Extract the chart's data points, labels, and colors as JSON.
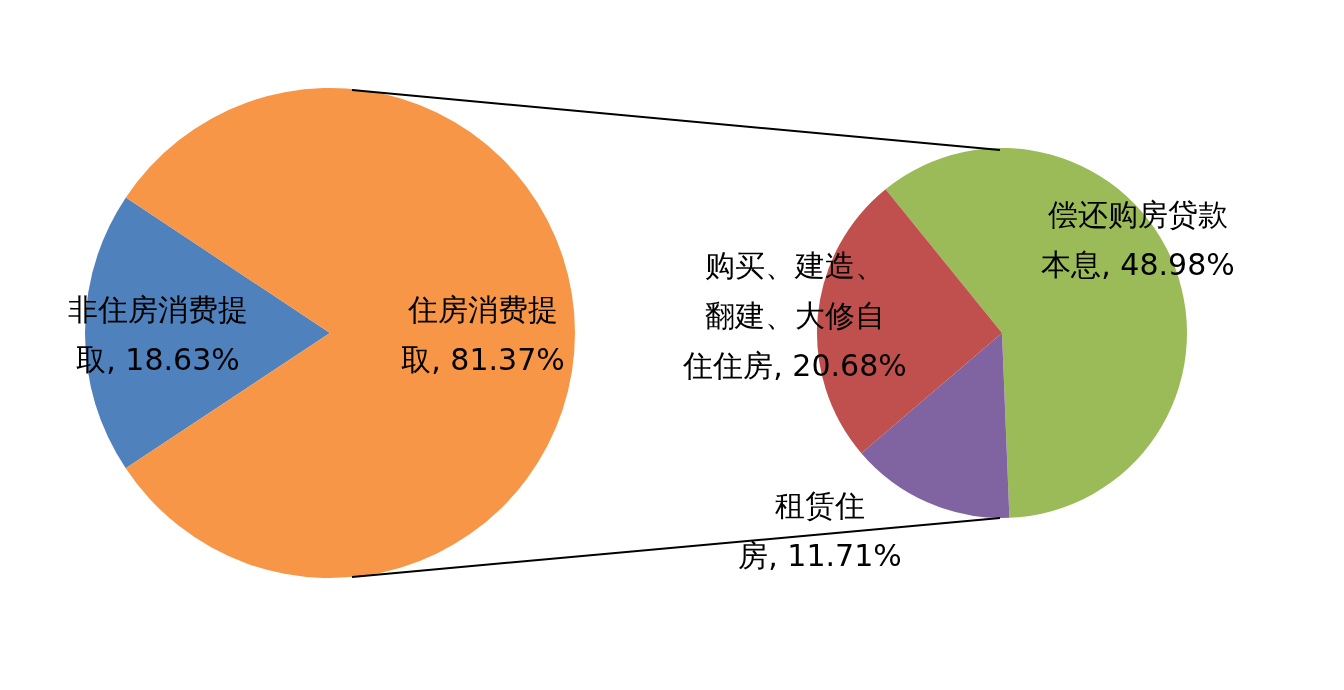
{
  "chart_data": [
    {
      "type": "pie",
      "categories": [
        "非住房消费提取",
        "住房消费提取"
      ],
      "values": [
        18.63,
        81.37
      ],
      "colors": [
        "#4f81bd",
        "#f79646"
      ],
      "value_labels": [
        "18.63%",
        "81.37%"
      ]
    },
    {
      "type": "pie",
      "categories": [
        "偿还购房贷款本息",
        "租赁住房",
        "购买、建造、翻建、大修自住住房"
      ],
      "values": [
        48.98,
        11.71,
        20.68
      ],
      "colors": [
        "#9bbb59",
        "#8064a2",
        "#c0504d"
      ],
      "value_labels": [
        "48.98%",
        "11.71%",
        "20.68%"
      ]
    }
  ]
}
